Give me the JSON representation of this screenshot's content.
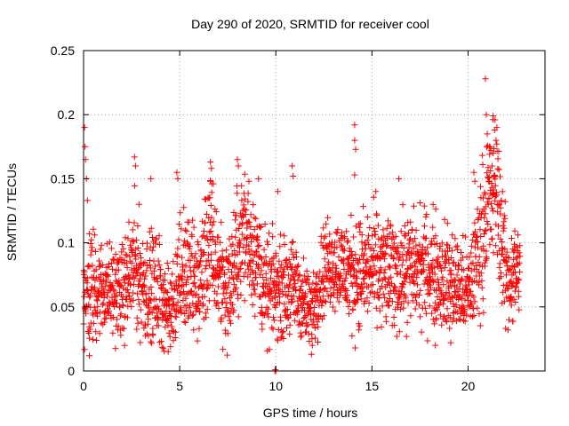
{
  "chart_data": {
    "type": "scatter",
    "title": "Day 290 of 2020, SRMTID for receiver cool",
    "xlabel": "GPS time / hours",
    "ylabel": "SRMTID / TECUs",
    "xlim": [
      0,
      24
    ],
    "ylim": [
      0,
      0.25
    ],
    "x_ticks": [
      0,
      5,
      10,
      15,
      20
    ],
    "y_ticks": [
      0,
      0.05,
      0.1,
      0.15,
      0.2,
      0.25
    ],
    "y_tick_labels": [
      "0",
      "0.05",
      "0.1",
      "0.15",
      "0.2",
      "0.25"
    ],
    "grid": true,
    "marker": "+",
    "color": "#ff0000",
    "profile": {
      "x": [
        0,
        0.3,
        1,
        2,
        2.7,
        3,
        4,
        4.5,
        5,
        6,
        6.5,
        7.5,
        8.3,
        9,
        9.5,
        10,
        11,
        11.8,
        12.5,
        13,
        14,
        15,
        16,
        17,
        18,
        19,
        20,
        20.5,
        21,
        21.5,
        22,
        22.7
      ],
      "y": [
        0.055,
        0.065,
        0.065,
        0.06,
        0.085,
        0.07,
        0.06,
        0.045,
        0.08,
        0.065,
        0.1,
        0.06,
        0.11,
        0.09,
        0.06,
        0.065,
        0.065,
        0.045,
        0.08,
        0.085,
        0.075,
        0.08,
        0.075,
        0.08,
        0.08,
        0.07,
        0.06,
        0.09,
        0.13,
        0.14,
        0.07,
        0.08
      ],
      "spread": [
        0.03,
        0.035,
        0.025,
        0.025,
        0.035,
        0.03,
        0.03,
        0.02,
        0.035,
        0.03,
        0.04,
        0.03,
        0.035,
        0.03,
        0.03,
        0.025,
        0.025,
        0.02,
        0.025,
        0.025,
        0.03,
        0.03,
        0.03,
        0.03,
        0.03,
        0.03,
        0.025,
        0.035,
        0.04,
        0.04,
        0.03,
        0.025
      ]
    },
    "points": [
      [
        0.05,
        0.19
      ],
      [
        0.08,
        0.175
      ],
      [
        0.1,
        0.165
      ],
      [
        0.15,
        0.15
      ],
      [
        0.2,
        0.133
      ],
      [
        2.65,
        0.167
      ],
      [
        2.7,
        0.16
      ],
      [
        3.5,
        0.15
      ],
      [
        4.85,
        0.155
      ],
      [
        4.9,
        0.15
      ],
      [
        6.6,
        0.163
      ],
      [
        6.65,
        0.158
      ],
      [
        6.6,
        0.148
      ],
      [
        8.0,
        0.165
      ],
      [
        8.05,
        0.16
      ],
      [
        8.6,
        0.148
      ],
      [
        9.1,
        0.15
      ],
      [
        10.1,
        0.14
      ],
      [
        10.85,
        0.16
      ],
      [
        10.9,
        0.152
      ],
      [
        14.1,
        0.192
      ],
      [
        14.1,
        0.18
      ],
      [
        14.15,
        0.173
      ],
      [
        14.1,
        0.153
      ],
      [
        15.2,
        0.14
      ],
      [
        16.4,
        0.15
      ],
      [
        20.3,
        0.155
      ],
      [
        20.35,
        0.148
      ],
      [
        20.9,
        0.228
      ],
      [
        20.95,
        0.2
      ],
      [
        21.0,
        0.185
      ],
      [
        21.3,
        0.199
      ],
      [
        21.4,
        0.196
      ],
      [
        21.5,
        0.19
      ],
      [
        21.45,
        0.18
      ],
      [
        21.3,
        0.17
      ],
      [
        21.25,
        0.16
      ],
      [
        21.35,
        0.152
      ],
      [
        21.1,
        0.175
      ],
      [
        9.95,
        0.0
      ],
      [
        9.97,
        0.001
      ],
      [
        10.0,
        0.0
      ],
      [
        0.3,
        0.012
      ],
      [
        4.4,
        0.015
      ],
      [
        11.85,
        0.013
      ],
      [
        11.9,
        0.02
      ],
      [
        18.3,
        0.02
      ],
      [
        19.1,
        0.022
      ]
    ]
  }
}
